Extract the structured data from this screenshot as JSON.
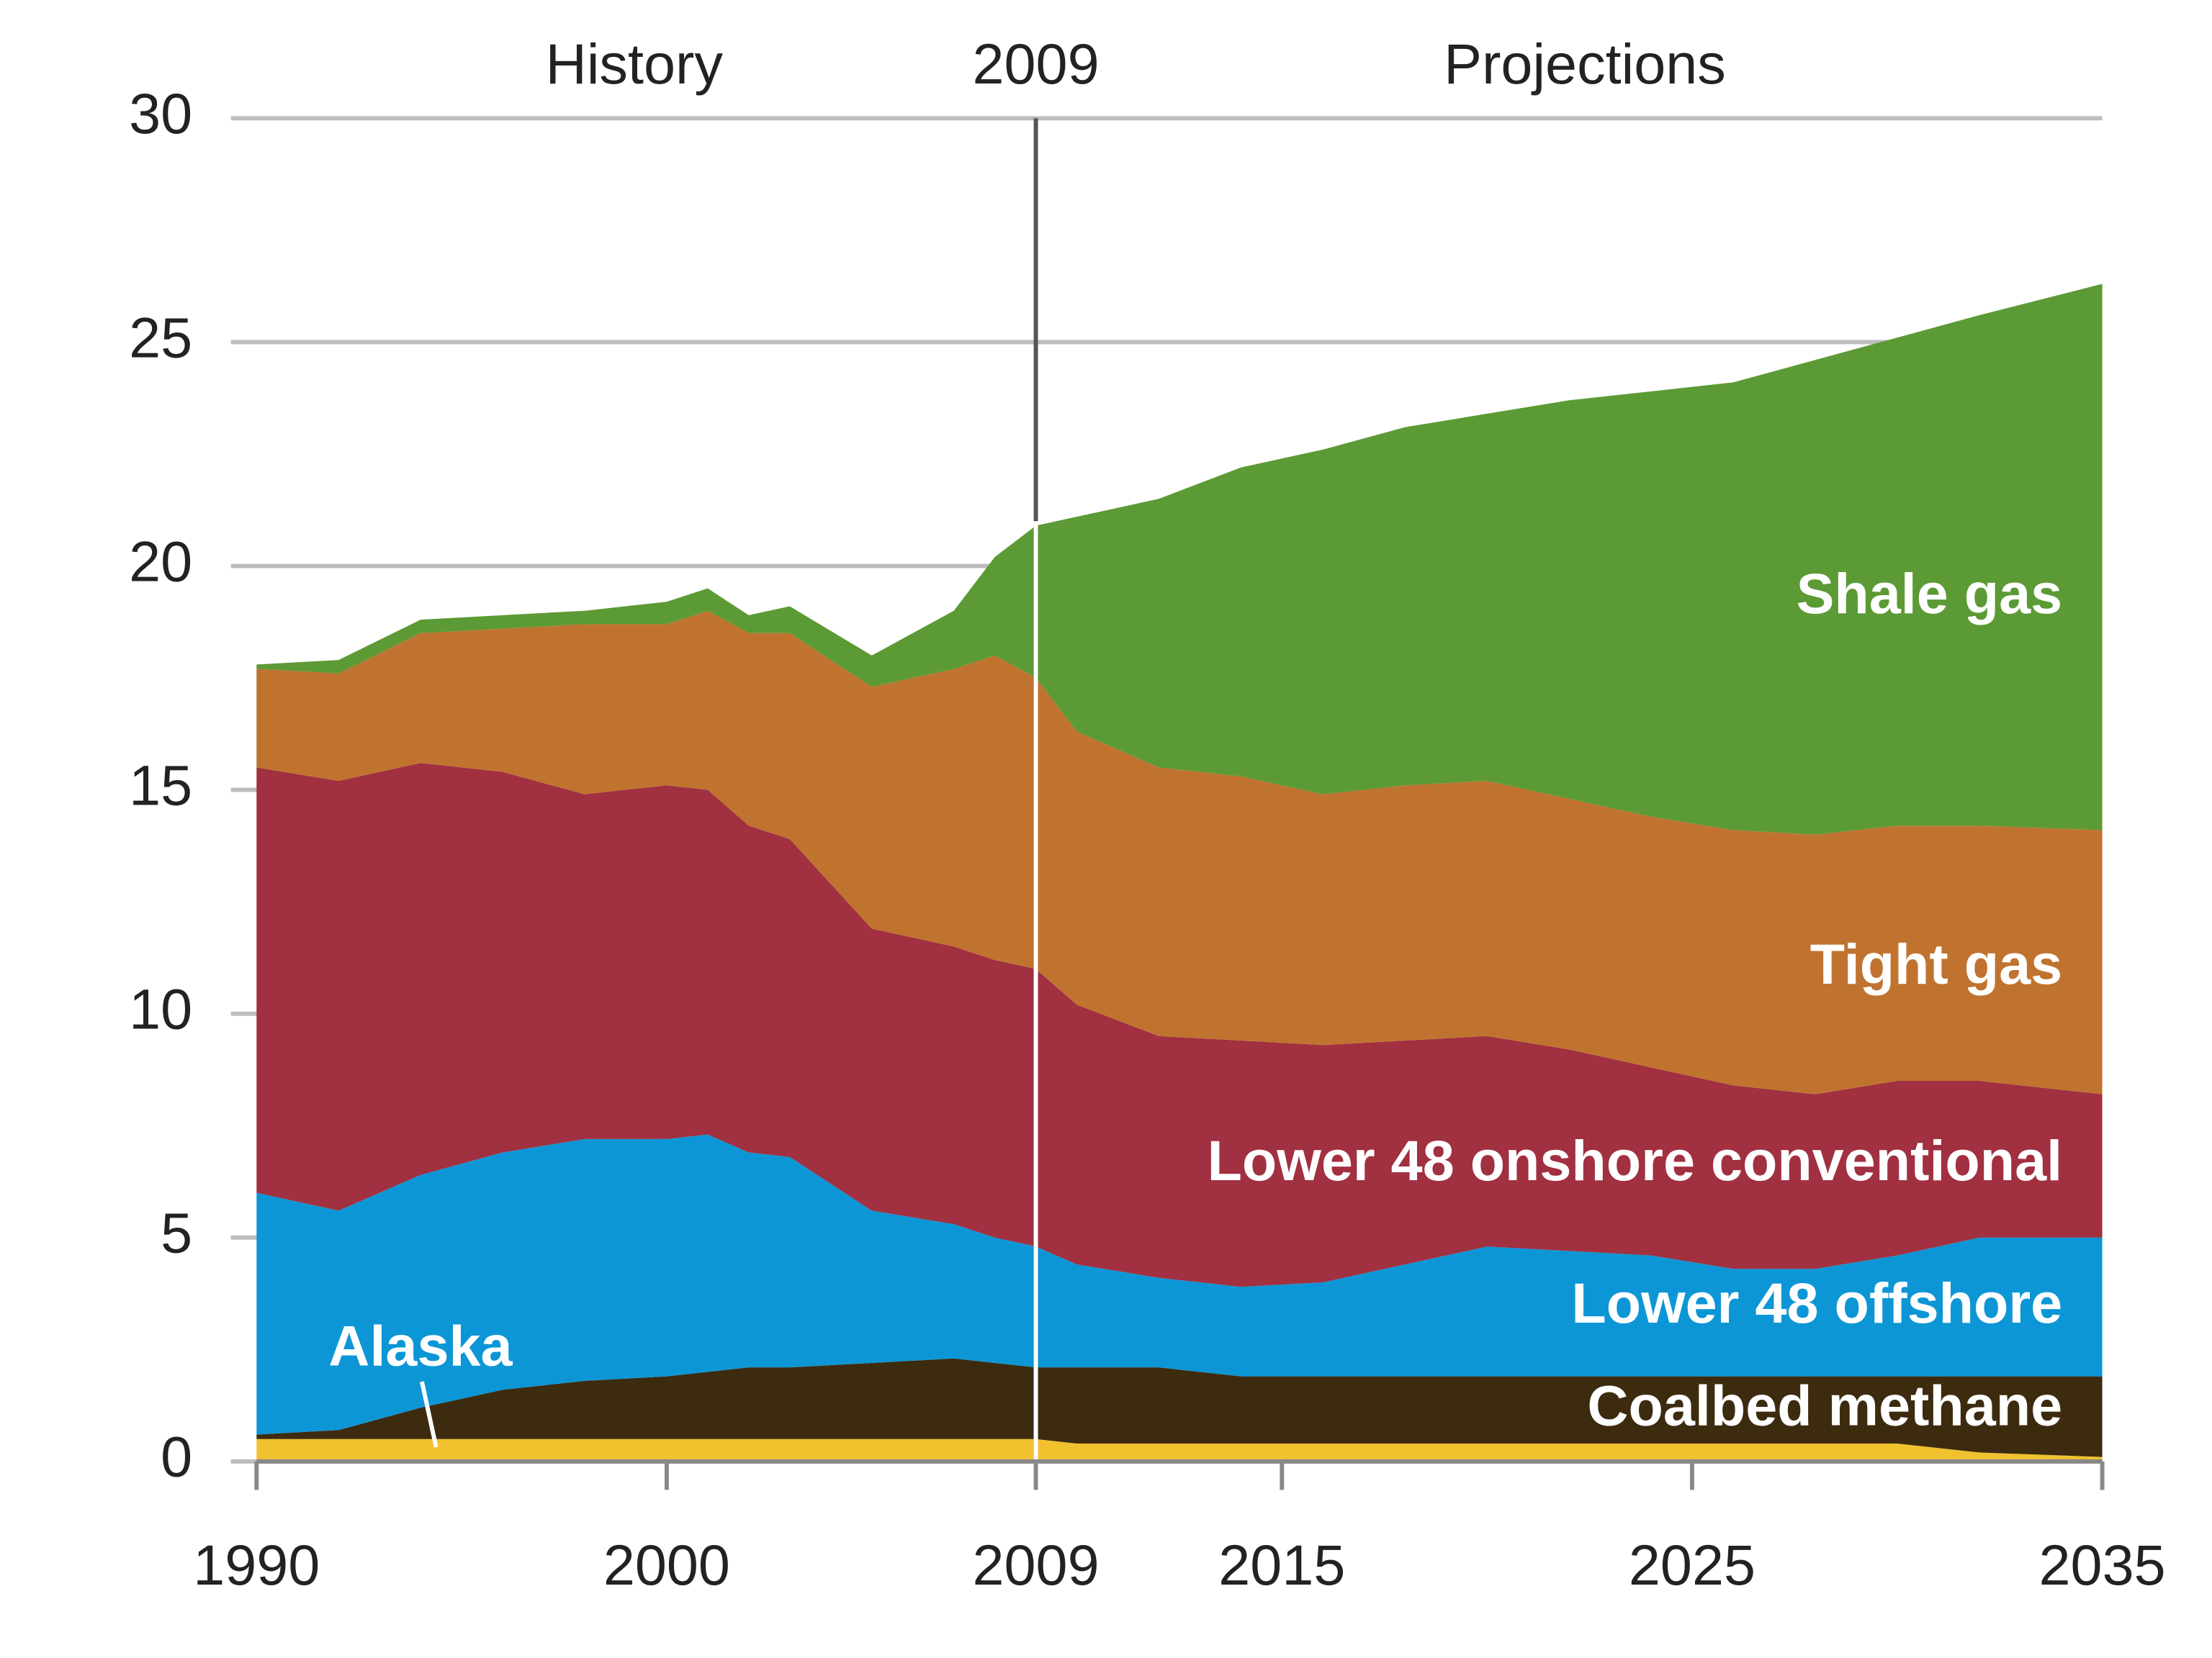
{
  "chart_data": {
    "type": "stacked_area",
    "annotations": [
      "History",
      "Projections"
    ],
    "divider_x": 2009,
    "x": [
      1990,
      1992,
      1994,
      1996,
      1998,
      2000,
      2001,
      2002,
      2003,
      2005,
      2007,
      2008,
      2009,
      2010,
      2012,
      2014,
      2016,
      2018,
      2020,
      2022,
      2024,
      2026,
      2028,
      2030,
      2032,
      2035
    ],
    "series": [
      {
        "name": "Alaska",
        "color": "#f2c12e",
        "values": [
          0.5,
          0.5,
          0.5,
          0.5,
          0.5,
          0.5,
          0.5,
          0.5,
          0.5,
          0.5,
          0.5,
          0.5,
          0.5,
          0.4,
          0.4,
          0.4,
          0.4,
          0.4,
          0.4,
          0.4,
          0.4,
          0.4,
          0.4,
          0.4,
          0.2,
          0.1
        ]
      },
      {
        "name": "Coalbed methane",
        "color": "#3d2b0f",
        "values": [
          0.1,
          0.2,
          0.7,
          1.1,
          1.3,
          1.4,
          1.5,
          1.6,
          1.6,
          1.7,
          1.8,
          1.7,
          1.6,
          1.7,
          1.7,
          1.5,
          1.5,
          1.5,
          1.5,
          1.5,
          1.5,
          1.5,
          1.5,
          1.5,
          1.7,
          1.8
        ]
      },
      {
        "name": "Lower 48 offshore",
        "color": "#0d96d6",
        "values": [
          5.4,
          4.9,
          5.2,
          5.3,
          5.4,
          5.3,
          5.3,
          4.8,
          4.7,
          3.4,
          3.0,
          2.8,
          2.7,
          2.3,
          2.0,
          2.0,
          2.1,
          2.5,
          2.9,
          2.8,
          2.7,
          2.4,
          2.4,
          2.7,
          3.1,
          3.1
        ]
      },
      {
        "name": "Lower 48 onshore conventional",
        "color": "#a13040",
        "values": [
          9.5,
          9.6,
          9.2,
          8.5,
          7.7,
          7.9,
          7.7,
          7.3,
          7.1,
          6.3,
          6.2,
          6.2,
          6.2,
          5.8,
          5.4,
          5.5,
          5.3,
          5.0,
          4.7,
          4.5,
          4.2,
          4.1,
          3.9,
          3.9,
          3.5,
          3.2
        ]
      },
      {
        "name": "Tight gas",
        "color": "#c0732f",
        "values": [
          2.2,
          2.4,
          2.9,
          3.2,
          3.8,
          3.6,
          4.0,
          4.3,
          4.6,
          5.4,
          6.2,
          6.8,
          6.5,
          6.1,
          6.0,
          5.9,
          5.6,
          5.7,
          5.7,
          5.6,
          5.6,
          5.7,
          5.8,
          5.7,
          5.7,
          5.9
        ]
      },
      {
        "name": "Shale gas",
        "color": "#5c9a35",
        "values": [
          0.1,
          0.3,
          0.3,
          0.3,
          0.3,
          0.5,
          0.5,
          0.4,
          0.6,
          0.7,
          1.3,
          2.2,
          3.4,
          4.8,
          6.0,
          6.9,
          7.7,
          8.0,
          8.2,
          8.9,
          9.5,
          10.0,
          10.6,
          10.9,
          11.4,
          12.2
        ]
      }
    ],
    "xlim": [
      1990,
      2035
    ],
    "xticks": [
      1990,
      2000,
      2009,
      2015,
      2025,
      2035
    ],
    "ylim": [
      0,
      30
    ],
    "yticks": [
      0,
      5,
      10,
      15,
      20,
      25,
      30
    ],
    "grid": true
  }
}
